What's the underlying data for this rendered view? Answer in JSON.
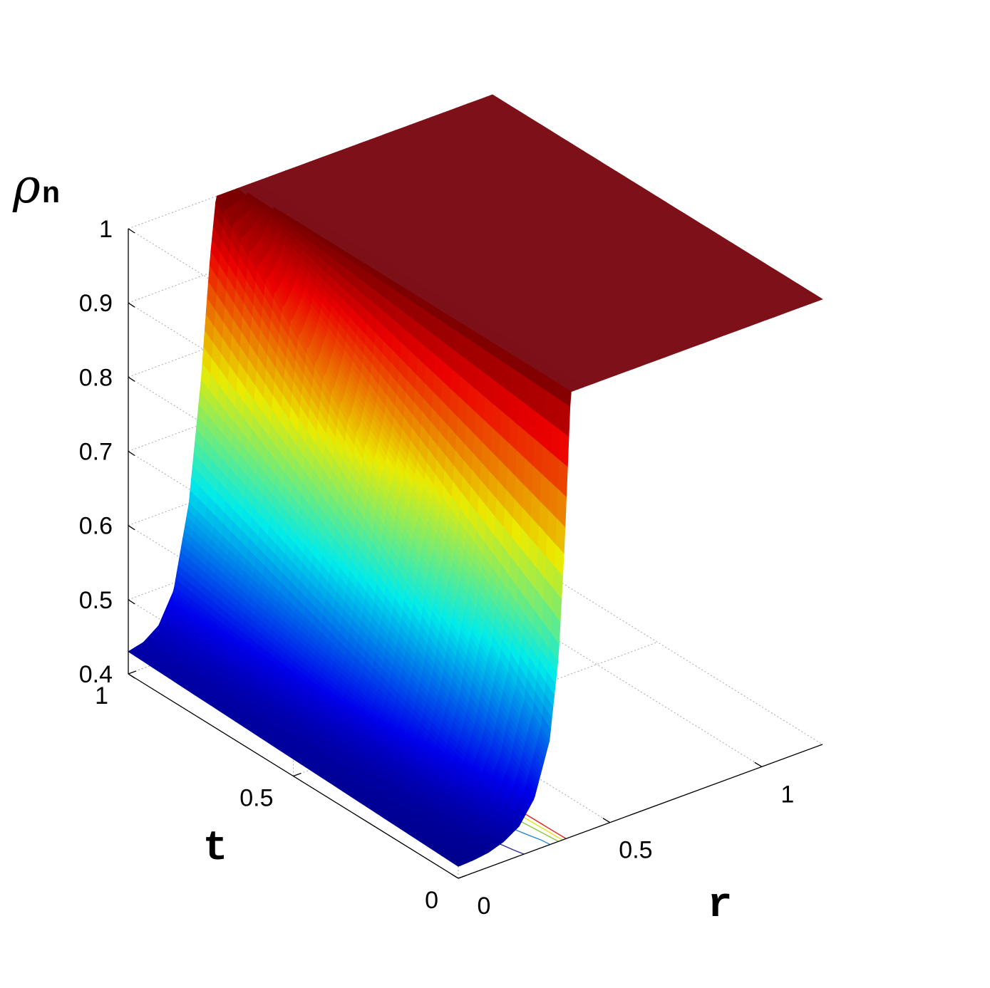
{
  "chart_data": {
    "type": "surface",
    "title": "",
    "xlabel": "r",
    "ylabel": "t",
    "zlabel": {
      "symbol": "ρ",
      "subscript": "n"
    },
    "xlim": [
      0,
      1.2
    ],
    "ylim": [
      0,
      1
    ],
    "zlim": [
      0.4,
      1
    ],
    "x_ticks": [
      {
        "value": 0,
        "label": "0"
      },
      {
        "value": 0.5,
        "label": "0.5"
      },
      {
        "value": 1,
        "label": "1"
      }
    ],
    "y_ticks": [
      {
        "value": 0,
        "label": "0"
      },
      {
        "value": 0.5,
        "label": "0.5"
      },
      {
        "value": 1,
        "label": "1"
      }
    ],
    "z_ticks": [
      {
        "value": 0.4,
        "label": "0.4"
      },
      {
        "value": 0.5,
        "label": "0.5"
      },
      {
        "value": 0.6,
        "label": "0.6"
      },
      {
        "value": 0.7,
        "label": "0.7"
      },
      {
        "value": 0.8,
        "label": "0.8"
      },
      {
        "value": 0.9,
        "label": "0.9"
      },
      {
        "value": 1,
        "label": "1"
      }
    ],
    "grid": true,
    "colormap": "jet",
    "surface": {
      "front_cross_section_t0": [
        [
          0,
          0.416
        ],
        [
          0.05,
          0.417
        ],
        [
          0.1,
          0.42
        ],
        [
          0.15,
          0.427
        ],
        [
          0.2,
          0.44
        ],
        [
          0.25,
          0.47
        ],
        [
          0.3,
          0.54
        ],
        [
          0.33,
          0.65
        ],
        [
          0.35,
          0.8
        ],
        [
          0.37,
          1
        ],
        [
          1.2,
          1
        ]
      ],
      "back_cross_section_t1": [
        [
          0,
          0.43
        ],
        [
          0.05,
          0.435
        ],
        [
          0.1,
          0.45
        ],
        [
          0.15,
          0.49
        ],
        [
          0.2,
          0.6
        ],
        [
          0.24,
          0.76
        ],
        [
          0.27,
          0.92
        ],
        [
          0.29,
          1
        ],
        [
          1.2,
          1
        ]
      ]
    },
    "contours": [
      {
        "level": 0.45,
        "color": "#28328c"
      },
      {
        "level": 0.55,
        "color": "#2e8ad8"
      },
      {
        "level": 0.65,
        "color": "#8cc83c"
      },
      {
        "level": 0.75,
        "color": "#e6e614"
      },
      {
        "level": 0.85,
        "color": "#e61e1e"
      }
    ]
  }
}
